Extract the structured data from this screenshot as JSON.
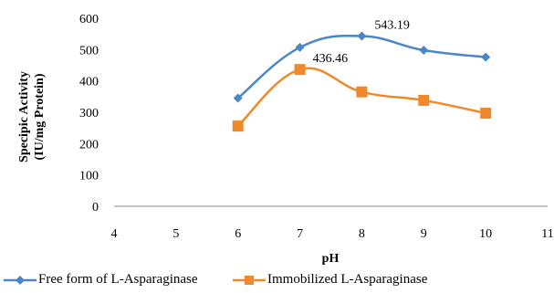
{
  "chart_data": {
    "type": "line",
    "title": "",
    "xlabel": "pH",
    "ylabel_line1": "Specipic Activity",
    "ylabel_line2": "(IU/mg Protein)",
    "xlim": [
      4,
      11
    ],
    "ylim": [
      0,
      600
    ],
    "xticks": [
      "4",
      "5",
      "6",
      "7",
      "8",
      "9",
      "10",
      "11"
    ],
    "yticks": [
      "0",
      "100",
      "200",
      "300",
      "400",
      "500",
      "600"
    ],
    "x": [
      6,
      7,
      8,
      9,
      10
    ],
    "series": [
      {
        "name": "Free form of L-Asparaginase",
        "values": [
          345,
          507,
          543.19,
          498,
          476
        ],
        "color": "#4a86c8",
        "marker": "diamond",
        "annotation": {
          "index": 2,
          "text": "543.19"
        }
      },
      {
        "name": "Immobilized L-Asparaginase",
        "values": [
          256,
          436.46,
          365,
          338,
          297
        ],
        "color": "#f0882c",
        "marker": "square",
        "annotation": {
          "index": 1,
          "text": "436.46"
        }
      }
    ],
    "grid": false,
    "legend": "bottom"
  }
}
